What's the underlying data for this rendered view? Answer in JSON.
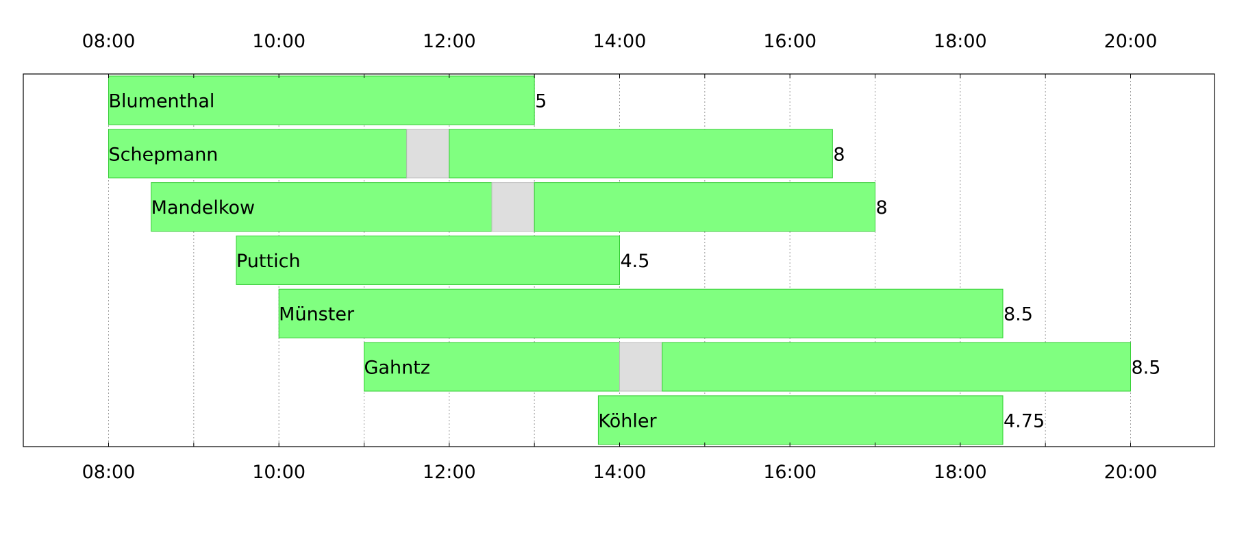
{
  "chart_data": {
    "type": "bar",
    "orientation": "horizontal",
    "x_axis": {
      "min_hour": 7,
      "max_hour": 21,
      "major_tick_hours": [
        8,
        10,
        12,
        14,
        16,
        18,
        20
      ],
      "major_tick_labels": [
        "08:00",
        "10:00",
        "12:00",
        "14:00",
        "16:00",
        "18:00",
        "20:00"
      ],
      "minor_gridline_hours": [
        8,
        9,
        10,
        11,
        12,
        13,
        14,
        15,
        16,
        17,
        18,
        19,
        20
      ],
      "tick_labels_top": true,
      "tick_labels_bottom": true
    },
    "grid": true,
    "colors": {
      "work": "#80ff80",
      "work_border": "#33cc33",
      "break": "#dedede",
      "break_border": "#bbbbbb",
      "grid": "#999999",
      "frame": "#000000"
    },
    "rows": [
      {
        "name": "Blumenthal",
        "start_hour": 8.0,
        "end_hour": 13.0,
        "breaks": [],
        "total": "5"
      },
      {
        "name": "Schepmann",
        "start_hour": 8.0,
        "end_hour": 16.5,
        "breaks": [
          [
            11.5,
            12.0
          ]
        ],
        "total": "8"
      },
      {
        "name": "Mandelkow",
        "start_hour": 8.5,
        "end_hour": 17.0,
        "breaks": [
          [
            12.5,
            13.0
          ]
        ],
        "total": "8"
      },
      {
        "name": "Puttich",
        "start_hour": 9.5,
        "end_hour": 14.0,
        "breaks": [],
        "total": "4.5"
      },
      {
        "name": "Münster",
        "start_hour": 10.0,
        "end_hour": 18.5,
        "breaks": [],
        "total": "8.5"
      },
      {
        "name": "Gahntz",
        "start_hour": 11.0,
        "end_hour": 20.0,
        "breaks": [
          [
            14.0,
            14.5
          ]
        ],
        "total": "8.5"
      },
      {
        "name": "Köhler",
        "start_hour": 13.75,
        "end_hour": 18.5,
        "breaks": [],
        "total": "4.75"
      }
    ]
  }
}
